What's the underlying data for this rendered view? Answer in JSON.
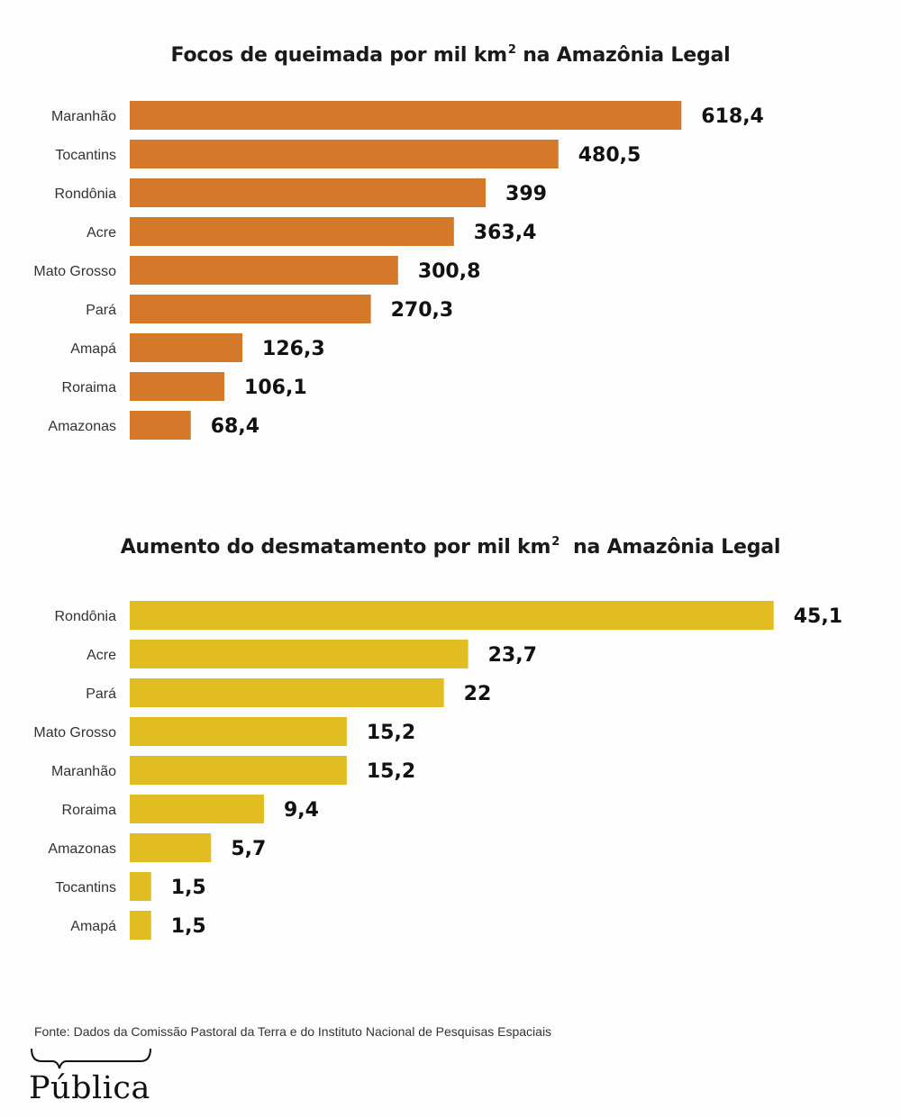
{
  "charts": [
    {
      "title": "Focos de queimada por mil km",
      "title_sup": "2",
      "title_suffix": " na Amazônia Legal"
    },
    {
      "title": "Aumento do desmatamento por mil km",
      "title_sup": "2",
      "title_suffix": "  na Amazônia Legal"
    }
  ],
  "chart_data": [
    {
      "type": "bar",
      "orientation": "horizontal",
      "title": "Focos de queimada por mil km² na Amazônia Legal",
      "categories": [
        "Maranhão",
        "Tocantins",
        "Rondônia",
        "Acre",
        "Mato Grosso",
        "Pará",
        "Amapá",
        "Roraima",
        "Amazonas"
      ],
      "values": [
        618.4,
        480.5,
        399,
        363.4,
        300.8,
        270.3,
        126.3,
        106.1,
        68.4
      ],
      "value_labels": [
        "618,4",
        "480,5",
        "399",
        "363,4",
        "300,8",
        "270,3",
        "126,3",
        "106,1",
        "68,4"
      ],
      "color": "#d4782a",
      "grid": false,
      "legend": "none"
    },
    {
      "type": "bar",
      "orientation": "horizontal",
      "title": "Aumento do desmatamento por mil km² na Amazônia Legal",
      "categories": [
        "Rondônia",
        "Acre",
        "Pará",
        "Mato Grosso",
        "Maranhão",
        "Roraima",
        "Amazonas",
        "Tocantins",
        "Amapá"
      ],
      "values": [
        45.1,
        23.7,
        22,
        15.2,
        15.2,
        9.4,
        5.7,
        1.5,
        1.5
      ],
      "value_labels": [
        "45,1",
        "23,7",
        "22",
        "15,2",
        "15,2",
        "9,4",
        "5,7",
        "1,5",
        "1,5"
      ],
      "color": "#e2bd22",
      "grid": false,
      "legend": "none"
    }
  ],
  "source": "Fonte: Dados da Comissão Pastoral da Terra e do Instituto Nacional de Pesquisas Espaciais",
  "logo": {
    "text": "Pública",
    "icon": "speech-bubble-brace-icon"
  }
}
